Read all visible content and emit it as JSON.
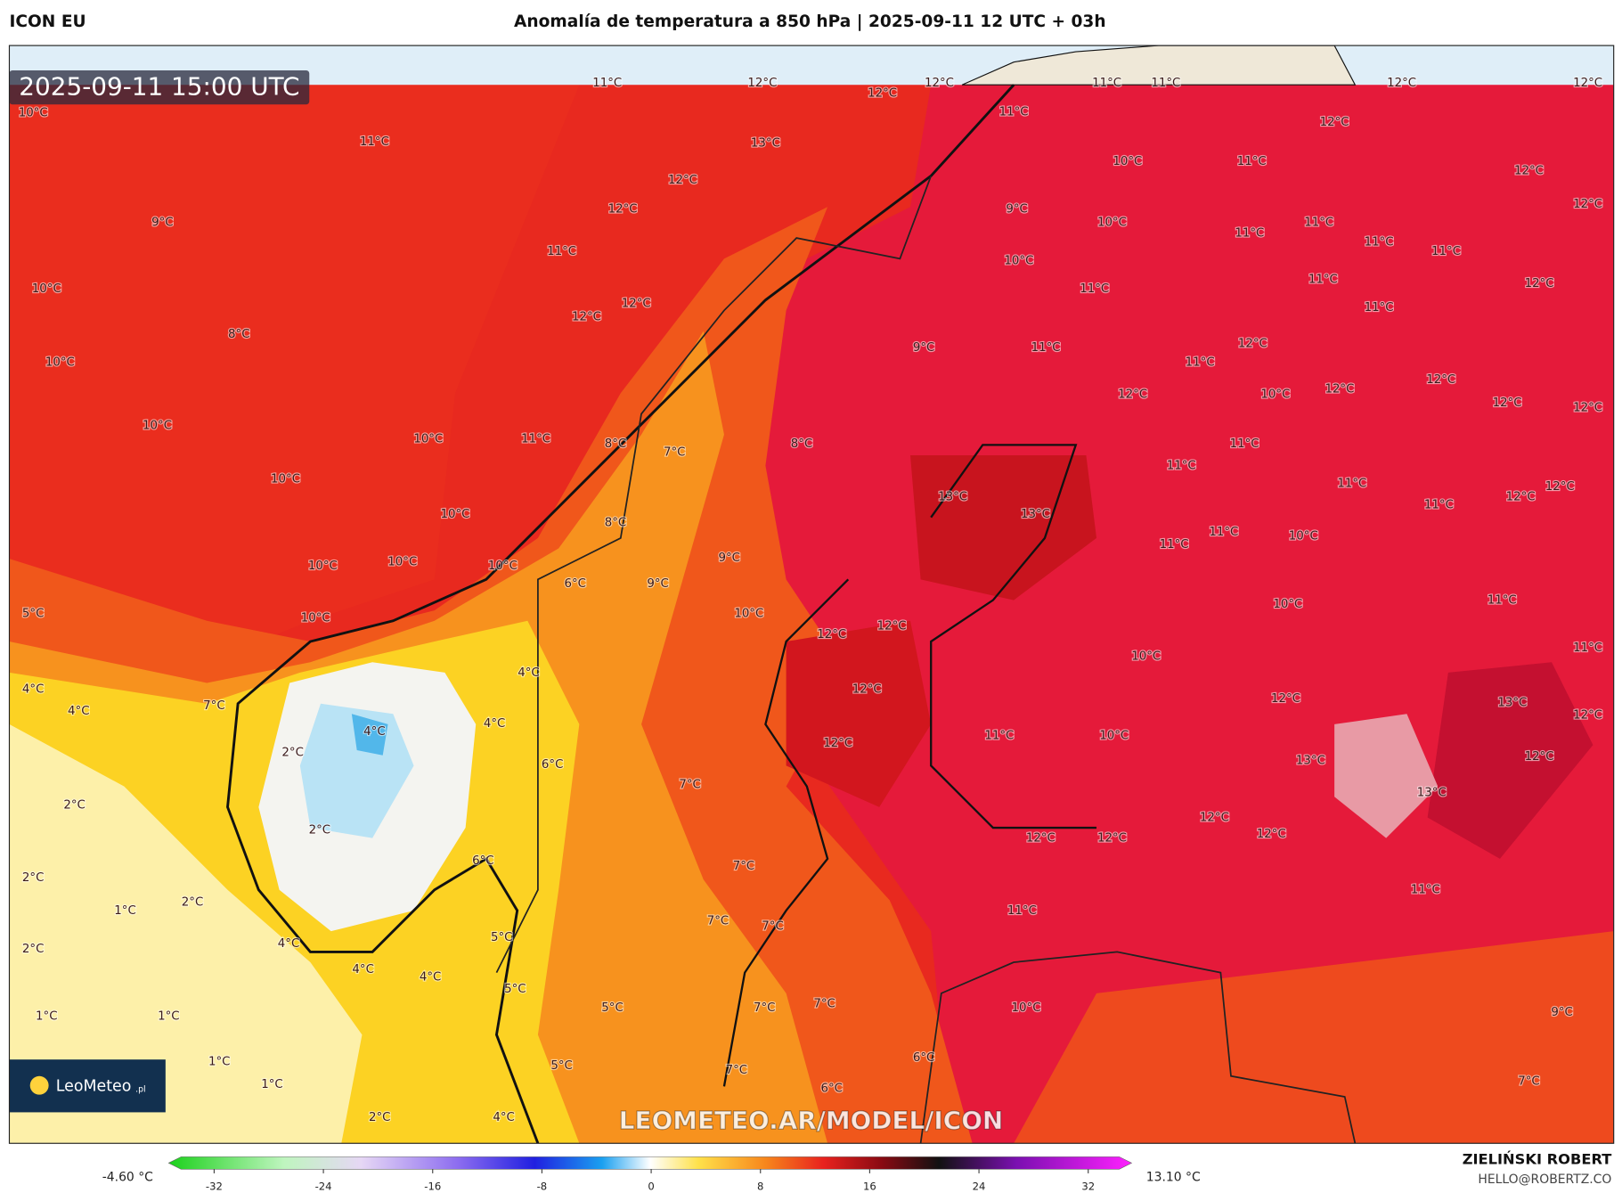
{
  "header": {
    "model": "ICON EU",
    "title": "Anomalía de temperatura a 850 hPa | 2025-09-11 12 UTC + 03h"
  },
  "map": {
    "timestamp": "2025-09-11 15:00 UTC",
    "watermark": "LEOMETEO.AR/MODEL/ICON",
    "logo": "LeoMeteo",
    "logo_domain": ".pl",
    "labels": [
      "11°C",
      "12°C",
      "12°C",
      "11°C",
      "11°C",
      "12°C",
      "12°C",
      "10°C",
      "11°C",
      "13°C",
      "12°C",
      "11°C",
      "12°C",
      "10°C",
      "11°C",
      "12°C",
      "12°C",
      "9°C",
      "12°C",
      "12°C",
      "9°C",
      "10°C",
      "11°C",
      "11°C",
      "11°C",
      "11°C",
      "11°C",
      "10°C",
      "11°C",
      "12°C",
      "10°C",
      "11°C",
      "11°C",
      "12°C",
      "12°C",
      "8°C",
      "9°C",
      "11°C",
      "12°C",
      "10°C",
      "11°C",
      "12°C",
      "12°C",
      "12°C",
      "10°C",
      "12°C",
      "12°C",
      "10°C",
      "10°C",
      "11°C",
      "8°C",
      "7°C",
      "8°C",
      "11°C",
      "11°C",
      "10°C",
      "11°C",
      "12°C",
      "12°C",
      "13°C",
      "13°C",
      "10°C",
      "11°C",
      "8°C",
      "11°C",
      "11°C",
      "10°C",
      "10°C",
      "10°C",
      "10°C",
      "9°C",
      "6°C",
      "9°C",
      "5°C",
      "10°C",
      "10°C",
      "10°C",
      "11°C",
      "12°C",
      "12°C",
      "11°C",
      "10°C",
      "4°C",
      "4°C",
      "12°C",
      "12°C",
      "13°C",
      "4°C",
      "7°C",
      "4°C",
      "4°C",
      "12°C",
      "11°C",
      "10°C",
      "12°C",
      "13°C",
      "12°C",
      "2°C",
      "6°C",
      "2°C",
      "7°C",
      "13°C",
      "2°C",
      "12°C",
      "12°C",
      "12°C",
      "12°C",
      "6°C",
      "7°C",
      "2°C",
      "2°C",
      "1°C",
      "11°C",
      "11°C",
      "7°C",
      "7°C",
      "2°C",
      "4°C",
      "5°C",
      "4°C",
      "4°C",
      "5°C",
      "10°C",
      "7°C",
      "7°C",
      "5°C",
      "9°C",
      "1°C",
      "1°C",
      "5°C",
      "7°C",
      "6°C",
      "1°C",
      "7°C",
      "1°C",
      "6°C",
      "2°C",
      "4°C"
    ]
  },
  "colorbar": {
    "min_label": "-4.60 °C",
    "max_label": "13.10 °C",
    "range": [
      -32,
      32
    ],
    "ticks": [
      -32,
      -24,
      -16,
      -8,
      0,
      8,
      16,
      24,
      32
    ]
  },
  "credit": {
    "author": "ZIELIŃSKI ROBERT",
    "email": "HELLO@ROBERTZ.CO"
  }
}
